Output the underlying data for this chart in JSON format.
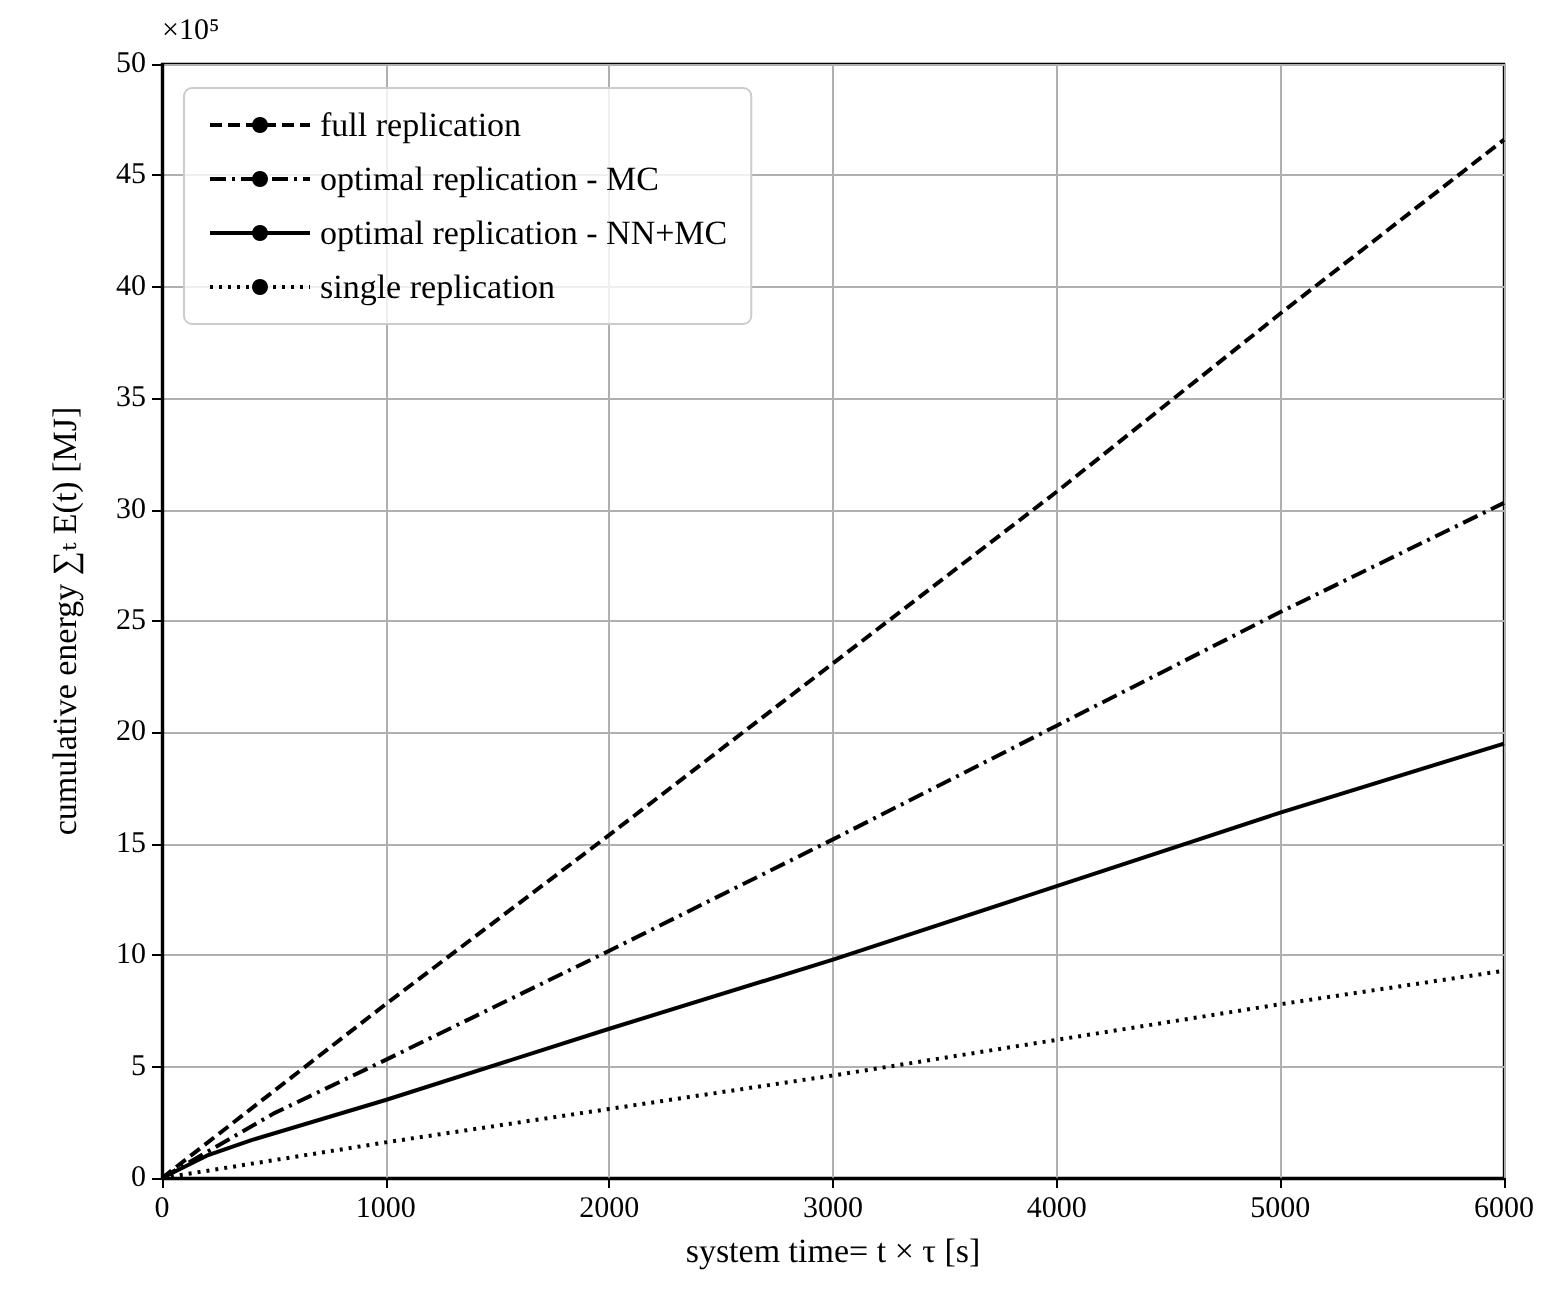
{
  "chart_data": {
    "type": "line",
    "xlabel": "system time= t × τ [s]",
    "ylabel": "cumulative energy ∑ₜ E(t) [MJ]",
    "annotations": [
      "×10⁵"
    ],
    "xlim": [
      0,
      6000
    ],
    "xticks": [
      0,
      1000,
      2000,
      3000,
      4000,
      5000,
      6000
    ],
    "ylim": [
      0,
      50
    ],
    "yticks": [
      0,
      5,
      10,
      15,
      20,
      25,
      30,
      35,
      40,
      45,
      50
    ],
    "grid": true,
    "legend": "top left",
    "marker": "none",
    "series": [
      {
        "name": "full replication",
        "color": "#000000",
        "line_style": "dashed",
        "x": [
          0,
          1000,
          2000,
          3000,
          4000,
          5000,
          6000
        ],
        "values": [
          0,
          7.8,
          15.4,
          23.1,
          30.8,
          38.8,
          46.6
        ]
      },
      {
        "name": "optimal replication - MC",
        "color": "#000000",
        "line_style": "dashdot",
        "x": [
          0,
          500,
          1000,
          2000,
          3000,
          4000,
          5000,
          6000
        ],
        "values": [
          0,
          2.9,
          5.3,
          10.2,
          15.2,
          20.3,
          25.4,
          30.3
        ]
      },
      {
        "name": "optimal replication - NN+MC",
        "color": "#000000",
        "line_style": "solid",
        "x": [
          0,
          200,
          400,
          1000,
          2000,
          3000,
          4000,
          5000,
          6000
        ],
        "values": [
          0,
          1.0,
          1.7,
          3.5,
          6.7,
          9.8,
          13.1,
          16.4,
          19.5
        ]
      },
      {
        "name": "single replication",
        "color": "#000000",
        "line_style": "dotted",
        "x": [
          0,
          1000,
          2000,
          3000,
          4000,
          5000,
          6000
        ],
        "values": [
          0,
          1.6,
          3.1,
          4.6,
          6.2,
          7.8,
          9.3
        ]
      }
    ]
  }
}
